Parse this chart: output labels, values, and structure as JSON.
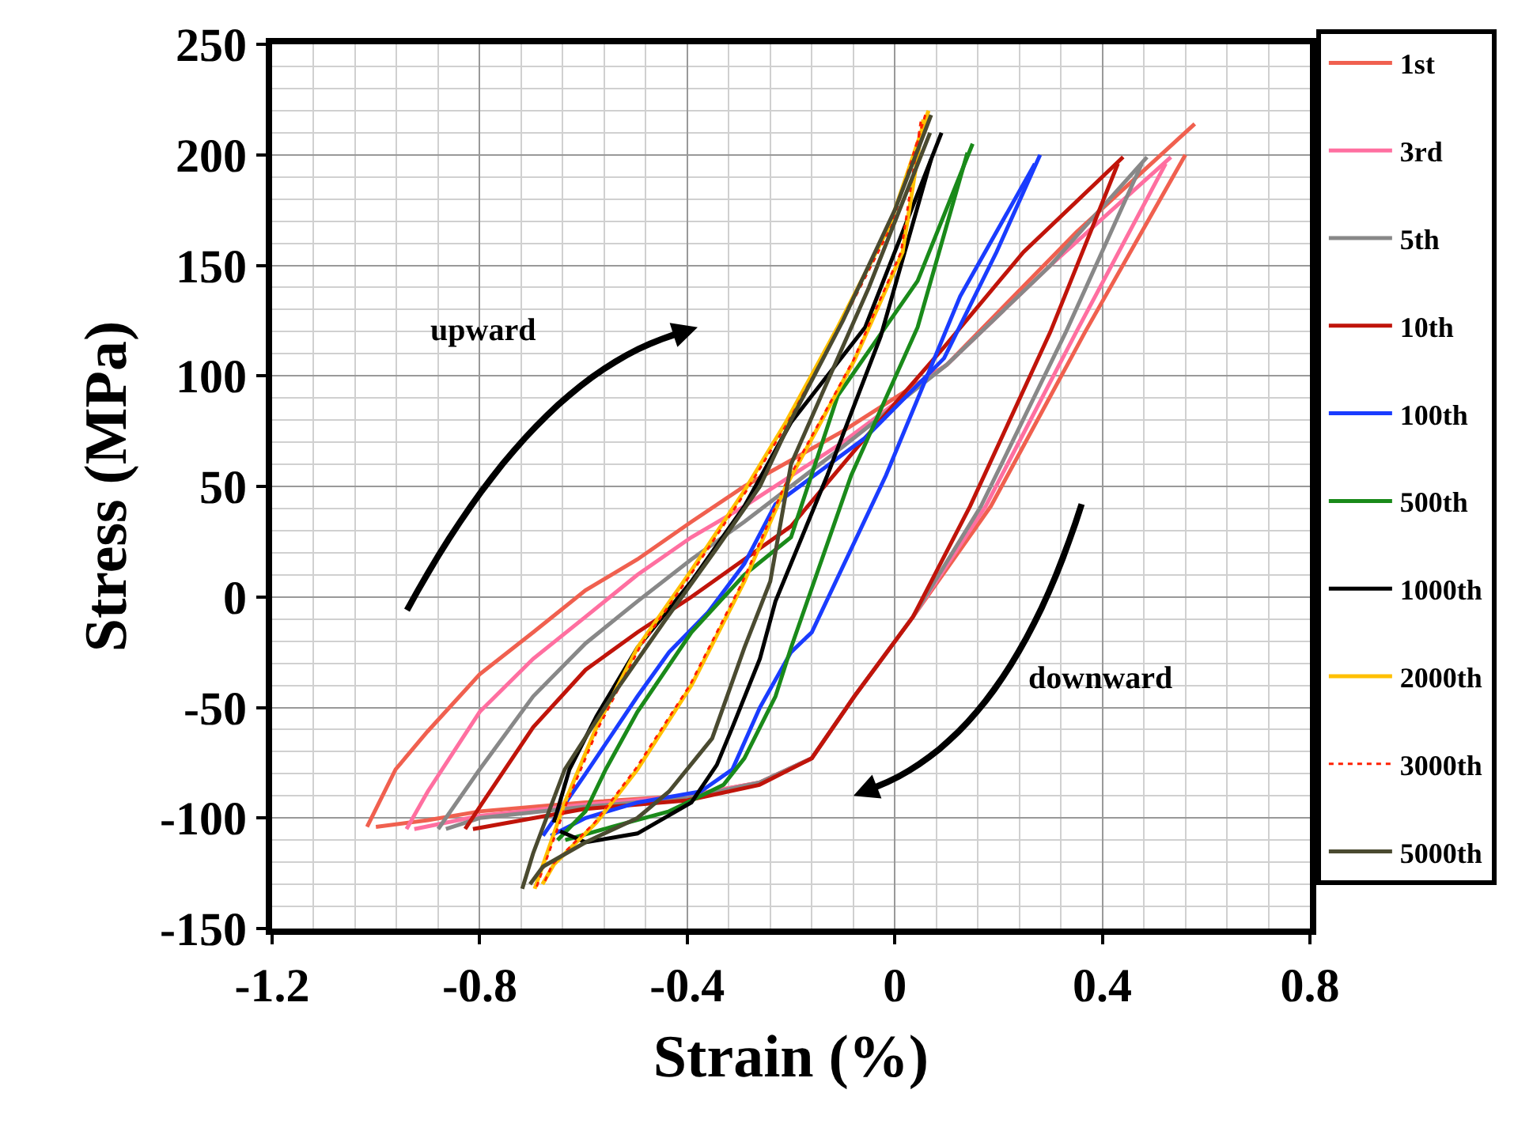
{
  "chart_data": {
    "type": "line",
    "xlabel": "Strain (%)",
    "ylabel": "Stress (MPa)",
    "xlim": [
      -1.2,
      0.8
    ],
    "xticks": [
      -1.2,
      -0.8,
      -0.4,
      0,
      0.4,
      0.8
    ],
    "ylim": [
      -150,
      250
    ],
    "yticks": [
      -150,
      -100,
      -50,
      0,
      50,
      100,
      150,
      200,
      250
    ],
    "grid": true,
    "legend": "right",
    "line_style": "solid",
    "annotations": [
      "upward",
      "downward"
    ],
    "series": [
      {
        "name": "1st",
        "color": "#f0604f",
        "x": [
          -1.017,
          -0.962,
          -0.901,
          -0.8,
          -0.697,
          -0.596,
          -0.496,
          -0.392,
          -0.29,
          -0.1,
          0.1,
          0.35,
          0.578
        ],
        "values": [
          -104,
          -78,
          -61,
          -35,
          -16,
          3,
          17,
          34,
          50,
          75,
          105,
          165,
          214
        ]
      },
      {
        "color": "#f0604f",
        "x": [
          0.56,
          0.367,
          0.185,
          0.035,
          -0.078,
          -0.16,
          -0.261,
          -0.4,
          -0.6,
          -0.8,
          -0.9,
          -1.0
        ],
        "values": [
          200,
          120,
          41,
          -9,
          -45,
          -73,
          -84,
          -90,
          -93,
          -97,
          -101,
          -104
        ]
      },
      {
        "name": "3rd",
        "color": "#ff6fa0",
        "x": [
          -0.941,
          -0.9,
          -0.8,
          -0.697,
          -0.596,
          -0.496,
          -0.392,
          -0.29,
          -0.1,
          0.1,
          0.3,
          0.532
        ],
        "values": [
          -105,
          -88,
          -52,
          -28,
          -9,
          10,
          27,
          41,
          70,
          105,
          150,
          199
        ]
      },
      {
        "color": "#ff6fa0",
        "x": [
          0.522,
          0.35,
          0.175,
          0.035,
          -0.078,
          -0.16,
          -0.261,
          -0.4,
          -0.6,
          -0.8,
          -0.926
        ],
        "values": [
          196,
          120,
          41,
          -9,
          -45,
          -73,
          -84,
          -90,
          -94,
          -99,
          -105
        ]
      },
      {
        "name": "5th",
        "color": "#888888",
        "x": [
          -0.88,
          -0.8,
          -0.697,
          -0.596,
          -0.496,
          -0.392,
          -0.29,
          -0.1,
          0.1,
          0.3,
          0.486
        ],
        "values": [
          -105,
          -78,
          -45,
          -21,
          -2,
          17,
          34,
          68,
          105,
          150,
          199
        ]
      },
      {
        "color": "#888888",
        "x": [
          0.476,
          0.33,
          0.166,
          0.035,
          -0.078,
          -0.16,
          -0.261,
          -0.4,
          -0.6,
          -0.8,
          -0.865
        ],
        "values": [
          196,
          120,
          41,
          -9,
          -45,
          -73,
          -84,
          -91,
          -95,
          -100,
          -105
        ]
      },
      {
        "name": "10th",
        "color": "#c0140a",
        "x": [
          -0.828,
          -0.8,
          -0.697,
          -0.596,
          -0.496,
          -0.392,
          -0.29,
          -0.2,
          -0.057,
          0.095,
          0.248,
          0.44
        ],
        "values": [
          -105,
          -95,
          -59,
          -33,
          -16,
          0,
          17,
          32,
          72,
          113,
          156,
          199
        ]
      },
      {
        "color": "#c0140a",
        "x": [
          0.43,
          0.3,
          0.145,
          0.035,
          -0.078,
          -0.16,
          -0.261,
          -0.4,
          -0.6,
          -0.813
        ],
        "values": [
          196,
          120,
          41,
          -9,
          -45,
          -73,
          -85,
          -92,
          -96,
          -105
        ]
      },
      {
        "name": "100th",
        "color": "#1a3cff",
        "x": [
          -0.678,
          -0.596,
          -0.496,
          -0.435,
          -0.36,
          -0.29,
          -0.23,
          -0.057,
          0.095,
          0.196,
          0.28
        ],
        "values": [
          -108,
          -80,
          -45,
          -25,
          -7,
          15,
          42,
          72,
          108,
          156,
          200
        ]
      },
      {
        "color": "#1a3cff",
        "x": [
          0.27,
          0.126,
          -0.017,
          -0.16,
          -0.2,
          -0.26,
          -0.313,
          -0.374,
          -0.496,
          -0.596,
          -0.663
        ],
        "values": [
          196,
          136,
          55,
          -16,
          -25,
          -50,
          -78,
          -88,
          -93,
          -100,
          -108
        ]
      },
      {
        "name": "500th",
        "color": "#1a8a1a",
        "x": [
          -0.65,
          -0.596,
          -0.557,
          -0.496,
          -0.392,
          -0.29,
          -0.2,
          -0.11,
          0.044,
          0.15
        ],
        "values": [
          -110,
          -97,
          -78,
          -52,
          -16,
          10,
          27,
          91,
          143,
          205
        ]
      },
      {
        "color": "#1a8a1a",
        "x": [
          0.14,
          0.044,
          -0.084,
          -0.2,
          -0.23,
          -0.29,
          -0.33,
          -0.435,
          -0.545,
          -0.635
        ],
        "values": [
          201,
          122,
          55,
          -23,
          -45,
          -73,
          -85,
          -97,
          -104,
          -110
        ]
      },
      {
        "name": "1000th",
        "color": "#000000",
        "x": [
          -0.657,
          -0.627,
          -0.575,
          -0.496,
          -0.392,
          -0.29,
          -0.2,
          -0.057,
          0.02,
          0.09
        ],
        "values": [
          -102,
          -78,
          -54,
          -23,
          7,
          41,
          79,
          122,
          168,
          210
        ]
      },
      {
        "color": "#000000",
        "x": [
          0.07,
          -0.027,
          -0.13,
          -0.23,
          -0.26,
          -0.313,
          -0.343,
          -0.392,
          -0.496,
          -0.596,
          -0.645
        ],
        "values": [
          198,
          118,
          55,
          -2,
          -28,
          -59,
          -76,
          -93,
          -107,
          -111,
          -106
        ]
      },
      {
        "name": "2000th",
        "color": "#ffc000",
        "x": [
          -0.694,
          -0.636,
          -0.575,
          -0.496,
          -0.392,
          -0.29,
          -0.21,
          -0.11,
          -0.01,
          0.065
        ],
        "values": [
          -132,
          -93,
          -59,
          -23,
          12,
          48,
          79,
          122,
          168,
          220
        ]
      },
      {
        "color": "#ffc000",
        "x": [
          0.055,
          0.015,
          -0.078,
          -0.21,
          -0.29,
          -0.392,
          -0.496,
          -0.575,
          -0.657,
          -0.679
        ],
        "values": [
          216,
          156,
          107,
          50,
          7,
          -40,
          -78,
          -102,
          -121,
          -130
        ]
      },
      {
        "name": "3000th",
        "color": "#ff2000",
        "line_style": "dotted",
        "x": [
          -0.69,
          -0.632,
          -0.571,
          -0.492,
          -0.388,
          -0.286,
          -0.206,
          -0.106,
          -0.006,
          0.06
        ],
        "values": [
          -131,
          -93,
          -59,
          -23,
          12,
          48,
          79,
          122,
          168,
          219
        ]
      },
      {
        "color": "#ff2000",
        "line_style": "dotted",
        "x": [
          0.05,
          0.012,
          -0.08,
          -0.213,
          -0.293,
          -0.395,
          -0.5,
          -0.578,
          -0.66,
          -0.675
        ],
        "values": [
          215,
          156,
          107,
          50,
          7,
          -40,
          -78,
          -102,
          -121,
          -129
        ]
      },
      {
        "name": "5000th",
        "color": "#4a4a30",
        "x": [
          -0.718,
          -0.697,
          -0.636,
          -0.545,
          -0.444,
          -0.343,
          -0.26,
          -0.2,
          -0.1,
          0,
          0.07
        ],
        "values": [
          -132,
          -116,
          -78,
          -45,
          -11,
          22,
          50,
          80,
          125,
          175,
          218
        ]
      },
      {
        "color": "#4a4a30",
        "x": [
          0.068,
          -0.05,
          -0.2,
          -0.24,
          -0.29,
          -0.352,
          -0.435,
          -0.496,
          -0.596,
          -0.678,
          -0.703
        ],
        "values": [
          210,
          140,
          60,
          7,
          -23,
          -64,
          -88,
          -100,
          -111,
          -122,
          -130
        ]
      }
    ]
  }
}
